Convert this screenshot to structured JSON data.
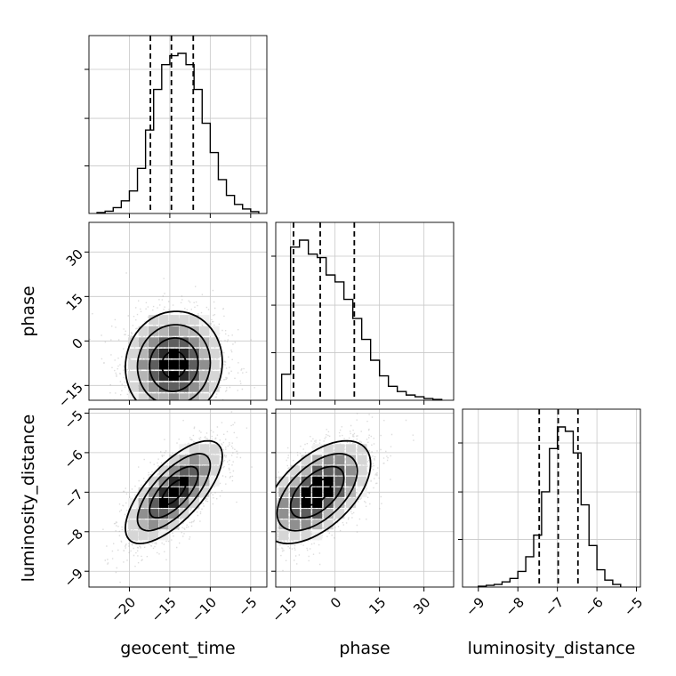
{
  "chart_data": {
    "type": "corner",
    "parameters": [
      "geocent_time",
      "phase",
      "luminosity_distance"
    ],
    "axes": [
      {
        "label": "geocent_time",
        "range": [
          -25,
          -3
        ],
        "ticks": [
          -20,
          -15,
          -10,
          -5
        ],
        "tick_labels": [
          "−20",
          "−15",
          "−10",
          "−5"
        ]
      },
      {
        "label": "phase",
        "range": [
          -20,
          40
        ],
        "ticks": [
          -15,
          0,
          15,
          30
        ],
        "tick_labels": [
          "−15",
          "0",
          "15",
          "30"
        ]
      },
      {
        "label": "luminosity_distance",
        "range": [
          -9.4,
          -4.9
        ],
        "ticks": [
          -9,
          -8,
          -7,
          -6,
          -5
        ],
        "tick_labels": [
          "−9",
          "−8",
          "−7",
          "−6",
          "−5"
        ]
      }
    ],
    "grid": true,
    "histograms": [
      {
        "parameter": "geocent_time",
        "bin_edges": [
          -24,
          -23,
          -22,
          -21,
          -20,
          -19,
          -18,
          -17,
          -16,
          -15,
          -14,
          -13,
          -12,
          -11,
          -10,
          -9,
          -8,
          -7,
          -6,
          -5,
          -4
        ],
        "counts": [
          2,
          5,
          13,
          28,
          50,
          100,
          185,
          275,
          330,
          350,
          355,
          330,
          275,
          200,
          135,
          75,
          40,
          20,
          10,
          4
        ],
        "quantiles": [
          -17.4,
          -14.8,
          -12.1
        ]
      },
      {
        "parameter": "phase",
        "bin_edges": [
          -18,
          -15,
          -12,
          -9,
          -6,
          -3,
          0,
          3,
          6,
          9,
          12,
          15,
          18,
          21,
          24,
          27,
          30,
          33,
          36
        ],
        "counts": [
          15,
          88,
          92,
          84,
          82,
          72,
          68,
          58,
          47,
          35,
          23,
          14,
          8,
          5,
          3,
          2,
          1,
          0.5
        ],
        "quantiles": [
          -14,
          -5,
          6.5
        ]
      },
      {
        "parameter": "luminosity_distance",
        "bin_edges": [
          -9.0,
          -8.8,
          -8.6,
          -8.4,
          -8.2,
          -8.0,
          -7.8,
          -7.6,
          -7.4,
          -7.2,
          -7.0,
          -6.8,
          -6.6,
          -6.4,
          -6.2,
          -6.0,
          -5.8,
          -5.6,
          -5.4
        ],
        "counts": [
          1,
          2,
          3,
          6,
          10,
          18,
          35,
          60,
          110,
          160,
          185,
          180,
          155,
          95,
          48,
          20,
          8,
          3
        ],
        "quantiles": [
          -7.46,
          -6.98,
          -6.48
        ]
      }
    ],
    "joint": [
      {
        "x": "geocent_time",
        "y": "phase",
        "x_mean": -14.5,
        "y_mean": -8,
        "x_sd": 3,
        "y_sd": 9,
        "correlation": 0.05
      },
      {
        "x": "geocent_time",
        "y": "luminosity_distance",
        "x_mean": -14.5,
        "y_mean": -7,
        "x_sd": 3,
        "y_sd": 0.65,
        "correlation": 0.7
      },
      {
        "x": "phase",
        "y": "luminosity_distance",
        "x_mean": -6,
        "y_mean": -7,
        "x_sd": 9,
        "y_sd": 0.65,
        "correlation": 0.55
      }
    ]
  }
}
